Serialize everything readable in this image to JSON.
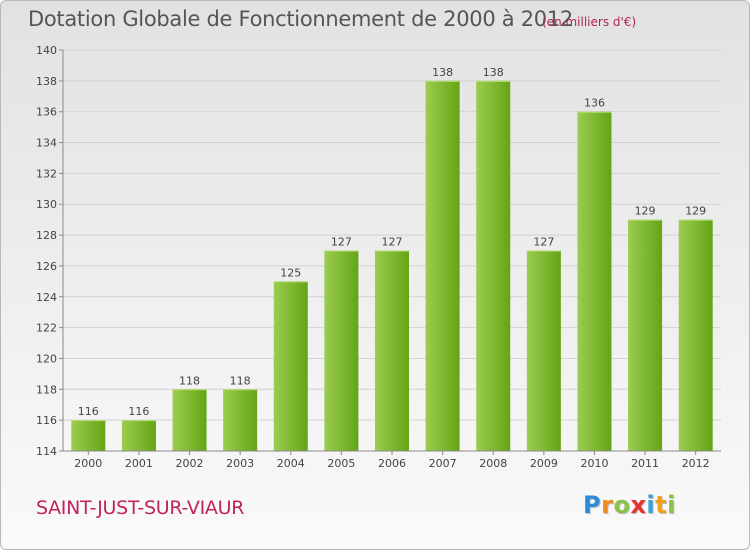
{
  "header": {
    "title": "Dotation Globale de Fonctionnement de 2000 à 2012",
    "unit": "(en milliers d'€)"
  },
  "footer": {
    "commune": "SAINT-JUST-SUR-VIAUR",
    "logo": {
      "letters": [
        "P",
        "r",
        "o",
        "x",
        "i",
        "t",
        "i"
      ],
      "colors": [
        "#2e8bd8",
        "#f08a1c",
        "#8bc34a",
        "#e8302c",
        "#3aa0de",
        "#f0a21c",
        "#8bc34a"
      ]
    }
  },
  "chart_data": {
    "type": "bar",
    "title": "Dotation Globale de Fonctionnement de 2000 à 2012",
    "subtitle": "(en milliers d'€)",
    "xlabel": "",
    "ylabel": "",
    "categories": [
      "2000",
      "2001",
      "2002",
      "2003",
      "2004",
      "2005",
      "2006",
      "2007",
      "2008",
      "2009",
      "2010",
      "2011",
      "2012"
    ],
    "values": [
      116,
      116,
      118,
      118,
      125,
      127,
      127,
      138,
      138,
      127,
      136,
      129,
      129
    ],
    "ylim": [
      114,
      140
    ],
    "yticks": [
      114,
      116,
      118,
      120,
      122,
      124,
      126,
      128,
      130,
      132,
      134,
      136,
      138,
      140
    ],
    "grid": true,
    "bar_colors": [
      "#9ccc50",
      "#63a515"
    ],
    "axis_color": "#8a8a8a"
  }
}
